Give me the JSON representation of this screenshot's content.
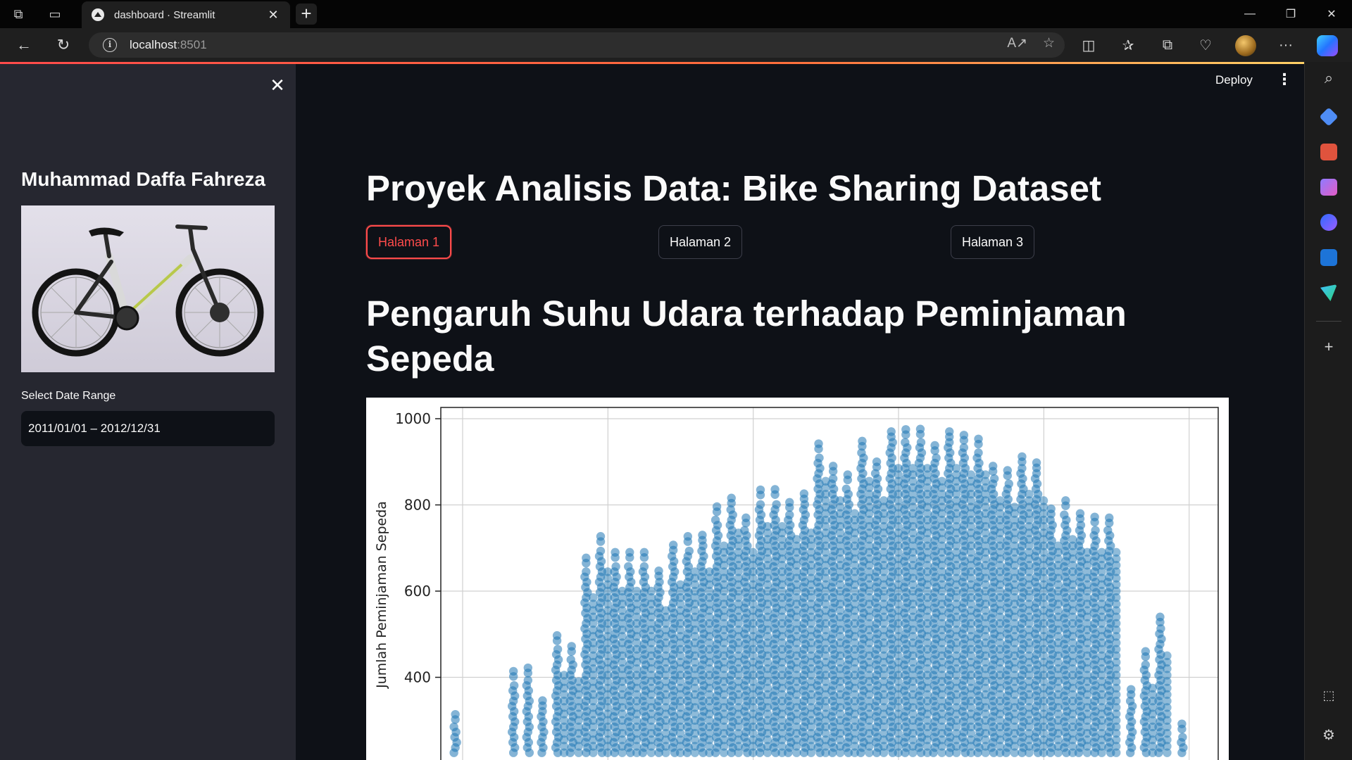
{
  "browser": {
    "tab_title": "dashboard · Streamlit",
    "url_host": "localhost",
    "url_port": ":8501"
  },
  "app": {
    "deploy_label": "Deploy"
  },
  "sidebar": {
    "title": "Muhammad Daffa Fahreza",
    "date_label": "Select Date Range",
    "date_value": "2011/01/01 – 2012/12/31"
  },
  "main": {
    "title": "Proyek Analisis Data: Bike Sharing Dataset",
    "pages": [
      {
        "label": "Halaman 1",
        "active": true
      },
      {
        "label": "Halaman 2",
        "active": false
      },
      {
        "label": "Halaman 3",
        "active": false
      }
    ],
    "section_title": "Pengaruh Suhu Udara terhadap Peminjaman Sepeda"
  },
  "colors": {
    "accent": "#ff4b4b",
    "point": "#1f77b4",
    "background": "#0e1117",
    "sidebar": "#262730"
  },
  "chart_data": {
    "type": "scatter",
    "ylabel": "Jumlah Peminjaman Sepeda",
    "yticks": [
      1000,
      800,
      600,
      400
    ],
    "ylim_visible": [
      225,
      1030
    ],
    "xlim": [
      0,
      1.07
    ],
    "grid": true,
    "columns": [
      {
        "x": 0.02,
        "top": 314
      },
      {
        "x": 0.1,
        "top": 414
      },
      {
        "x": 0.12,
        "top": 422
      },
      {
        "x": 0.14,
        "top": 346
      },
      {
        "x": 0.16,
        "top": 497
      },
      {
        "x": 0.18,
        "top": 472
      },
      {
        "x": 0.2,
        "top": 677
      },
      {
        "x": 0.22,
        "top": 727
      },
      {
        "x": 0.24,
        "top": 690
      },
      {
        "x": 0.26,
        "top": 690
      },
      {
        "x": 0.28,
        "top": 690
      },
      {
        "x": 0.3,
        "top": 647
      },
      {
        "x": 0.32,
        "top": 707
      },
      {
        "x": 0.34,
        "top": 727
      },
      {
        "x": 0.36,
        "top": 730
      },
      {
        "x": 0.38,
        "top": 796
      },
      {
        "x": 0.4,
        "top": 816
      },
      {
        "x": 0.42,
        "top": 770
      },
      {
        "x": 0.44,
        "top": 835
      },
      {
        "x": 0.46,
        "top": 836
      },
      {
        "x": 0.48,
        "top": 806
      },
      {
        "x": 0.5,
        "top": 826
      },
      {
        "x": 0.52,
        "top": 942
      },
      {
        "x": 0.54,
        "top": 890
      },
      {
        "x": 0.56,
        "top": 870
      },
      {
        "x": 0.58,
        "top": 948
      },
      {
        "x": 0.6,
        "top": 900
      },
      {
        "x": 0.62,
        "top": 970
      },
      {
        "x": 0.64,
        "top": 975
      },
      {
        "x": 0.66,
        "top": 976
      },
      {
        "x": 0.68,
        "top": 938
      },
      {
        "x": 0.7,
        "top": 970
      },
      {
        "x": 0.72,
        "top": 962
      },
      {
        "x": 0.74,
        "top": 953
      },
      {
        "x": 0.76,
        "top": 890
      },
      {
        "x": 0.78,
        "top": 880
      },
      {
        "x": 0.8,
        "top": 912
      },
      {
        "x": 0.82,
        "top": 898
      },
      {
        "x": 0.84,
        "top": 791
      },
      {
        "x": 0.86,
        "top": 810
      },
      {
        "x": 0.88,
        "top": 780
      },
      {
        "x": 0.9,
        "top": 772
      },
      {
        "x": 0.92,
        "top": 770
      },
      {
        "x": 0.95,
        "top": 372
      },
      {
        "x": 0.97,
        "top": 460
      },
      {
        "x": 0.99,
        "top": 540
      },
      {
        "x": 1.02,
        "top": 292
      }
    ]
  }
}
